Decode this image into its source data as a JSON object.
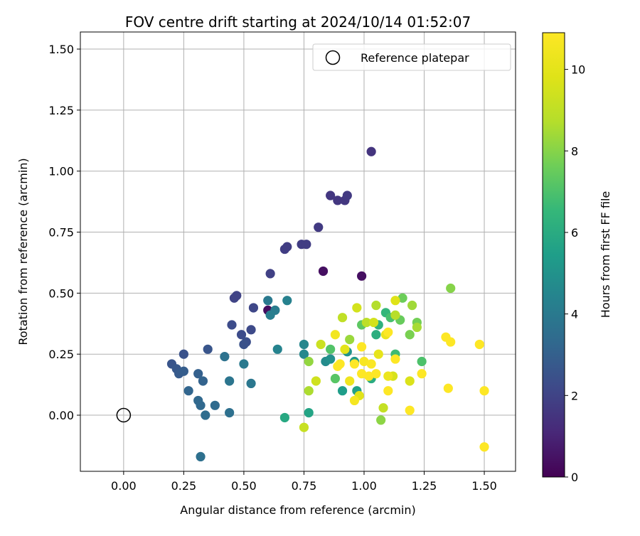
{
  "chart_data": {
    "type": "scatter",
    "title": "FOV centre drift starting at 2024/10/14 01:52:07",
    "xlabel": "Angular distance from reference (arcmin)",
    "ylabel": "Rotation from reference (arcmin)",
    "xlim": [
      -0.18,
      1.63
    ],
    "ylim": [
      -0.23,
      1.57
    ],
    "xticks": [
      0.0,
      0.25,
      0.5,
      0.75,
      1.0,
      1.25,
      1.5
    ],
    "xtick_labels": [
      "0.00",
      "0.25",
      "0.50",
      "0.75",
      "1.00",
      "1.25",
      "1.50"
    ],
    "yticks": [
      0.0,
      0.25,
      0.5,
      0.75,
      1.0,
      1.25,
      1.5
    ],
    "ytick_labels": [
      "0.00",
      "0.25",
      "0.50",
      "0.75",
      "1.00",
      "1.25",
      "1.50"
    ],
    "grid": true,
    "legend": {
      "placement": "top-right",
      "entries": [
        "Reference platepar"
      ]
    },
    "reference_point": {
      "x": 0.0,
      "y": 0.0,
      "label": "Reference platepar",
      "marker": "open-circle",
      "color": "#000000"
    },
    "colorbar": {
      "label": "Hours from first FF file",
      "cmap": "viridis",
      "vmin": 0,
      "vmax": 10.9,
      "ticks": [
        0,
        2,
        4,
        6,
        8,
        10
      ],
      "tick_labels": [
        "0",
        "2",
        "4",
        "6",
        "8",
        "10"
      ]
    },
    "points": [
      {
        "x": 0.6,
        "y": 0.43,
        "c": 0.3
      },
      {
        "x": 0.83,
        "y": 0.59,
        "c": 0.4
      },
      {
        "x": 0.99,
        "y": 0.57,
        "c": 0.4
      },
      {
        "x": 1.03,
        "y": 1.08,
        "c": 1.5
      },
      {
        "x": 0.86,
        "y": 0.9,
        "c": 1.6
      },
      {
        "x": 0.89,
        "y": 0.88,
        "c": 1.6
      },
      {
        "x": 0.92,
        "y": 0.88,
        "c": 1.6
      },
      {
        "x": 0.93,
        "y": 0.9,
        "c": 1.7
      },
      {
        "x": 0.81,
        "y": 0.77,
        "c": 1.7
      },
      {
        "x": 0.74,
        "y": 0.7,
        "c": 1.8
      },
      {
        "x": 0.76,
        "y": 0.7,
        "c": 1.8
      },
      {
        "x": 0.67,
        "y": 0.68,
        "c": 1.8
      },
      {
        "x": 0.68,
        "y": 0.69,
        "c": 1.8
      },
      {
        "x": 0.61,
        "y": 0.58,
        "c": 1.9
      },
      {
        "x": 0.46,
        "y": 0.48,
        "c": 2.0
      },
      {
        "x": 0.47,
        "y": 0.49,
        "c": 2.0
      },
      {
        "x": 0.54,
        "y": 0.44,
        "c": 2.1
      },
      {
        "x": 0.53,
        "y": 0.35,
        "c": 2.2
      },
      {
        "x": 0.49,
        "y": 0.33,
        "c": 2.3
      },
      {
        "x": 0.45,
        "y": 0.37,
        "c": 2.3
      },
      {
        "x": 0.51,
        "y": 0.3,
        "c": 2.4
      },
      {
        "x": 0.5,
        "y": 0.29,
        "c": 2.5
      },
      {
        "x": 0.25,
        "y": 0.25,
        "c": 2.5
      },
      {
        "x": 0.35,
        "y": 0.27,
        "c": 2.6
      },
      {
        "x": 0.2,
        "y": 0.21,
        "c": 2.6
      },
      {
        "x": 0.22,
        "y": 0.19,
        "c": 2.7
      },
      {
        "x": 0.23,
        "y": 0.17,
        "c": 2.8
      },
      {
        "x": 0.25,
        "y": 0.18,
        "c": 2.9
      },
      {
        "x": 0.31,
        "y": 0.17,
        "c": 3.0
      },
      {
        "x": 0.33,
        "y": 0.14,
        "c": 3.1
      },
      {
        "x": 0.27,
        "y": 0.1,
        "c": 3.2
      },
      {
        "x": 0.31,
        "y": 0.06,
        "c": 3.3
      },
      {
        "x": 0.32,
        "y": 0.04,
        "c": 3.3
      },
      {
        "x": 0.38,
        "y": 0.04,
        "c": 3.4
      },
      {
        "x": 0.34,
        "y": 0.0,
        "c": 3.5
      },
      {
        "x": 0.44,
        "y": 0.01,
        "c": 3.6
      },
      {
        "x": 0.32,
        "y": -0.17,
        "c": 3.6
      },
      {
        "x": 0.42,
        "y": 0.24,
        "c": 3.7
      },
      {
        "x": 0.44,
        "y": 0.14,
        "c": 3.8
      },
      {
        "x": 0.53,
        "y": 0.13,
        "c": 3.9
      },
      {
        "x": 0.5,
        "y": 0.21,
        "c": 4.0
      },
      {
        "x": 0.6,
        "y": 0.47,
        "c": 4.0
      },
      {
        "x": 0.63,
        "y": 0.43,
        "c": 4.1
      },
      {
        "x": 0.61,
        "y": 0.41,
        "c": 4.2
      },
      {
        "x": 0.68,
        "y": 0.47,
        "c": 4.3
      },
      {
        "x": 0.64,
        "y": 0.27,
        "c": 4.4
      },
      {
        "x": 0.75,
        "y": 0.29,
        "c": 4.5
      },
      {
        "x": 0.75,
        "y": 0.25,
        "c": 4.6
      },
      {
        "x": 0.84,
        "y": 0.22,
        "c": 4.7
      },
      {
        "x": 0.86,
        "y": 0.23,
        "c": 4.9
      },
      {
        "x": 0.93,
        "y": 0.26,
        "c": 5.0
      },
      {
        "x": 0.96,
        "y": 0.22,
        "c": 5.2
      },
      {
        "x": 0.91,
        "y": 0.1,
        "c": 5.4
      },
      {
        "x": 0.97,
        "y": 0.1,
        "c": 5.6
      },
      {
        "x": 0.77,
        "y": 0.01,
        "c": 5.7
      },
      {
        "x": 0.67,
        "y": -0.01,
        "c": 5.9
      },
      {
        "x": 1.03,
        "y": 0.15,
        "c": 6.0
      },
      {
        "x": 1.05,
        "y": 0.33,
        "c": 6.1
      },
      {
        "x": 1.06,
        "y": 0.37,
        "c": 6.3
      },
      {
        "x": 1.09,
        "y": 0.42,
        "c": 6.5
      },
      {
        "x": 1.13,
        "y": 0.25,
        "c": 6.7
      },
      {
        "x": 1.11,
        "y": 0.4,
        "c": 6.9
      },
      {
        "x": 1.24,
        "y": 0.22,
        "c": 7.0
      },
      {
        "x": 0.86,
        "y": 0.27,
        "c": 7.1
      },
      {
        "x": 0.88,
        "y": 0.15,
        "c": 7.2
      },
      {
        "x": 0.99,
        "y": 0.37,
        "c": 7.3
      },
      {
        "x": 1.15,
        "y": 0.39,
        "c": 7.5
      },
      {
        "x": 1.16,
        "y": 0.48,
        "c": 7.6
      },
      {
        "x": 1.22,
        "y": 0.38,
        "c": 7.7
      },
      {
        "x": 1.19,
        "y": 0.33,
        "c": 7.8
      },
      {
        "x": 1.36,
        "y": 0.52,
        "c": 8.0
      },
      {
        "x": 1.07,
        "y": -0.02,
        "c": 8.1
      },
      {
        "x": 0.77,
        "y": 0.22,
        "c": 8.2
      },
      {
        "x": 0.94,
        "y": 0.31,
        "c": 8.3
      },
      {
        "x": 1.2,
        "y": 0.45,
        "c": 8.4
      },
      {
        "x": 1.22,
        "y": 0.36,
        "c": 8.5
      },
      {
        "x": 0.77,
        "y": 0.1,
        "c": 8.6
      },
      {
        "x": 1.05,
        "y": 0.45,
        "c": 8.7
      },
      {
        "x": 1.13,
        "y": 0.41,
        "c": 8.8
      },
      {
        "x": 1.01,
        "y": 0.38,
        "c": 8.9
      },
      {
        "x": 0.91,
        "y": 0.4,
        "c": 9.0
      },
      {
        "x": 1.08,
        "y": 0.03,
        "c": 9.1
      },
      {
        "x": 0.75,
        "y": -0.05,
        "c": 9.2
      },
      {
        "x": 0.82,
        "y": 0.29,
        "c": 9.3
      },
      {
        "x": 0.8,
        "y": 0.14,
        "c": 9.4
      },
      {
        "x": 0.97,
        "y": 0.44,
        "c": 9.5
      },
      {
        "x": 1.04,
        "y": 0.38,
        "c": 9.5
      },
      {
        "x": 1.12,
        "y": 0.16,
        "c": 9.6
      },
      {
        "x": 1.19,
        "y": 0.14,
        "c": 9.7
      },
      {
        "x": 1.13,
        "y": 0.47,
        "c": 9.8
      },
      {
        "x": 0.98,
        "y": 0.08,
        "c": 9.9
      },
      {
        "x": 0.92,
        "y": 0.27,
        "c": 10.0
      },
      {
        "x": 1.06,
        "y": 0.25,
        "c": 10.1
      },
      {
        "x": 1.09,
        "y": 0.33,
        "c": 10.2
      },
      {
        "x": 1.1,
        "y": 0.16,
        "c": 10.3
      },
      {
        "x": 0.94,
        "y": 0.14,
        "c": 10.4
      },
      {
        "x": 0.88,
        "y": 0.33,
        "c": 10.5
      },
      {
        "x": 0.96,
        "y": 0.06,
        "c": 10.6
      },
      {
        "x": 1.0,
        "y": 0.22,
        "c": 10.7
      },
      {
        "x": 1.03,
        "y": 0.21,
        "c": 10.8
      },
      {
        "x": 0.9,
        "y": 0.21,
        "c": 10.9
      },
      {
        "x": 0.89,
        "y": 0.2,
        "c": 10.9
      },
      {
        "x": 0.96,
        "y": 0.21,
        "c": 10.9
      },
      {
        "x": 0.99,
        "y": 0.28,
        "c": 10.9
      },
      {
        "x": 0.99,
        "y": 0.17,
        "c": 10.9
      },
      {
        "x": 1.02,
        "y": 0.16,
        "c": 10.9
      },
      {
        "x": 1.05,
        "y": 0.17,
        "c": 10.9
      },
      {
        "x": 1.1,
        "y": 0.34,
        "c": 10.9
      },
      {
        "x": 1.1,
        "y": 0.1,
        "c": 10.9
      },
      {
        "x": 1.13,
        "y": 0.23,
        "c": 10.9
      },
      {
        "x": 1.19,
        "y": 0.02,
        "c": 10.9
      },
      {
        "x": 1.24,
        "y": 0.17,
        "c": 10.9
      },
      {
        "x": 1.34,
        "y": 0.32,
        "c": 10.9
      },
      {
        "x": 1.35,
        "y": 0.11,
        "c": 10.9
      },
      {
        "x": 1.36,
        "y": 0.3,
        "c": 10.9
      },
      {
        "x": 1.48,
        "y": 0.29,
        "c": 10.9
      },
      {
        "x": 1.5,
        "y": 0.1,
        "c": 10.9
      },
      {
        "x": 1.5,
        "y": -0.13,
        "c": 10.9
      }
    ]
  }
}
